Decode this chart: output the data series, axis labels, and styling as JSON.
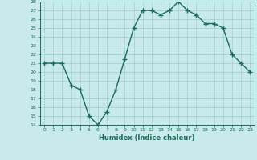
{
  "x": [
    0,
    1,
    2,
    3,
    4,
    5,
    6,
    7,
    8,
    9,
    10,
    11,
    12,
    13,
    14,
    15,
    16,
    17,
    18,
    19,
    20,
    21,
    22,
    23
  ],
  "y": [
    21,
    21,
    21,
    18.5,
    18,
    15,
    14,
    15.5,
    18,
    21.5,
    25,
    27,
    27,
    26.5,
    27,
    28,
    27,
    26.5,
    25.5,
    25.5,
    25,
    22,
    21,
    20
  ],
  "xlabel": "Humidex (Indice chaleur)",
  "ylim": [
    14,
    28
  ],
  "xlim": [
    -0.5,
    23.5
  ],
  "yticks": [
    14,
    15,
    16,
    17,
    18,
    19,
    20,
    21,
    22,
    23,
    24,
    25,
    26,
    27,
    28
  ],
  "xticks": [
    0,
    1,
    2,
    3,
    4,
    5,
    6,
    7,
    8,
    9,
    10,
    11,
    12,
    13,
    14,
    15,
    16,
    17,
    18,
    19,
    20,
    21,
    22,
    23
  ],
  "line_color": "#1a6b5a",
  "bg_color": "#c8eaea",
  "grid_color": "#a0cccc",
  "marker": "+",
  "marker_size": 4,
  "line_width": 1.0
}
